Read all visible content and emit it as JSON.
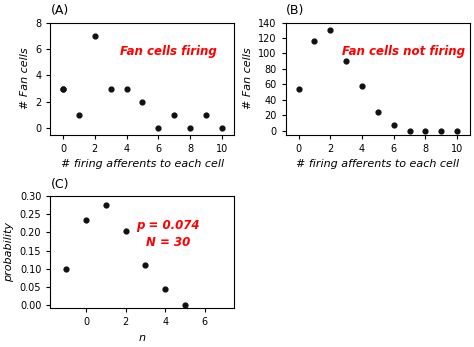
{
  "chart_data": [
    {
      "type": "scatter",
      "title": "(A)",
      "x": [
        0,
        0,
        1,
        2,
        3,
        4,
        5,
        6,
        7,
        8,
        9,
        10
      ],
      "values": [
        3,
        3,
        1,
        7,
        3,
        3,
        2,
        0,
        1,
        0,
        1,
        0
      ],
      "color": "#111111",
      "x_label": "# firing afferents to each cell",
      "y_label": "# Fan cells",
      "xlim": [
        -0.8,
        10.8
      ],
      "ylim": [
        -0.5,
        8
      ],
      "xticks": [
        0,
        2,
        4,
        6,
        8,
        10
      ],
      "yticks": [
        0,
        2,
        4,
        6,
        8
      ],
      "annotations": [
        {
          "text": "Fan cells firing",
          "color": "red"
        }
      ]
    },
    {
      "type": "scatter",
      "title": "(B)",
      "x": [
        0,
        1,
        2,
        3,
        4,
        5,
        6,
        7,
        8,
        9,
        10
      ],
      "values": [
        54,
        116,
        130,
        90,
        58,
        24,
        8,
        0,
        0,
        0,
        0
      ],
      "color": "#111111",
      "x_label": "# firing afferents to each cell",
      "y_label": "# Fan cells",
      "xlim": [
        -0.8,
        10.8
      ],
      "ylim": [
        -5,
        140
      ],
      "xticks": [
        0,
        2,
        4,
        6,
        8,
        10
      ],
      "yticks": [
        0,
        20,
        40,
        60,
        80,
        100,
        120,
        140
      ],
      "annotations": [
        {
          "text": "Fan cells not firing",
          "color": "red"
        }
      ]
    },
    {
      "type": "scatter",
      "title": "(C)",
      "x": [
        -1,
        0,
        1,
        2,
        3,
        4,
        5
      ],
      "values": [
        0.1,
        0.235,
        0.275,
        0.205,
        0.11,
        0.046,
        0.002
      ],
      "color": "#111111",
      "x_label": "n",
      "y_label": "probability",
      "xlim": [
        -1.8,
        7.5
      ],
      "ylim": [
        -0.008,
        0.3
      ],
      "xticks": [
        0,
        2,
        4,
        6
      ],
      "yticks": [
        {
          "value": 0.0,
          "label": "0.00"
        },
        {
          "value": 0.05,
          "label": "0.05"
        },
        {
          "value": 0.1,
          "label": "0.10"
        },
        {
          "value": 0.15,
          "label": "0.15"
        },
        {
          "value": 0.2,
          "label": "0.20"
        },
        {
          "value": 0.25,
          "label": "0.25"
        },
        {
          "value": 0.3,
          "label": "0.30"
        }
      ],
      "annotations": [
        {
          "text": "p = 0.074",
          "color": "red"
        },
        {
          "text": "N = 30",
          "color": "red"
        }
      ]
    }
  ]
}
